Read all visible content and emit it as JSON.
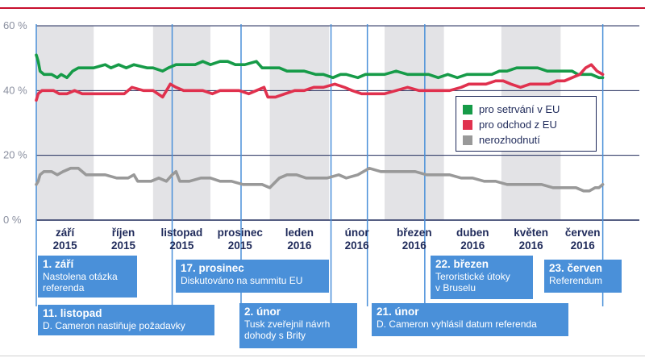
{
  "colors": {
    "leave": "#e0314e",
    "remain": "#169b48",
    "undecided": "#999999",
    "axis": "#1f2a5a",
    "annotation": "#4a90d9",
    "band": "#e3e3e6"
  },
  "annotations": [
    {
      "title": "1. září",
      "text": "Nastolena otázka\nreferenda"
    },
    {
      "title": "11. listopad",
      "text": "D. Cameron nastiňuje požadavky"
    },
    {
      "title": "17. prosinec",
      "text": "Diskutováno na summitu EU"
    },
    {
      "title": "2. únor",
      "text": "Tusk zveřejnil návrh\ndohody s Brity"
    },
    {
      "title": "21. únor",
      "text": "D. Cameron vyhlásil datum referenda"
    },
    {
      "title": "22. březen",
      "text": "Teroristické útoky\nv Bruselu"
    },
    {
      "title": "23. červen",
      "text": "Referendum"
    }
  ],
  "chart_data": {
    "type": "line",
    "title": "",
    "xlabel": "",
    "ylabel": "",
    "ylim": [
      0,
      60
    ],
    "yticks": [
      "0 %",
      "20 %",
      "40 %",
      "60 %"
    ],
    "ytick_values": [
      0,
      20,
      40,
      60
    ],
    "x_range_days": [
      0,
      297
    ],
    "months": [
      {
        "label": "září",
        "year": "2015",
        "start_day": 0,
        "shaded": true
      },
      {
        "label": "říjen",
        "year": "2015",
        "start_day": 30,
        "shaded": false
      },
      {
        "label": "listopad",
        "year": "2015",
        "start_day": 61,
        "shaded": true
      },
      {
        "label": "prosinec",
        "year": "2015",
        "start_day": 91,
        "shaded": false
      },
      {
        "label": "leden",
        "year": "2016",
        "start_day": 122,
        "shaded": true
      },
      {
        "label": "únor",
        "year": "2016",
        "start_day": 153,
        "shaded": false
      },
      {
        "label": "březen",
        "year": "2016",
        "start_day": 182,
        "shaded": true
      },
      {
        "label": "duben",
        "year": "2016",
        "start_day": 213,
        "shaded": false
      },
      {
        "label": "květen",
        "year": "2016",
        "start_day": 243,
        "shaded": true
      },
      {
        "label": "červen",
        "year": "2016",
        "start_day": 274,
        "shaded": false
      }
    ],
    "event_days": [
      0,
      71,
      107,
      154,
      173,
      203,
      296
    ],
    "legend": [
      "pro setrvání v EU",
      "pro odchod z EU",
      "nerozhodnutí"
    ],
    "series": [
      {
        "name": "pro setrvání v EU",
        "color": "#169b48",
        "x": [
          0,
          1,
          2,
          4,
          8,
          11,
          13,
          16,
          19,
          22,
          26,
          30,
          36,
          39,
          43,
          47,
          51,
          58,
          61,
          66,
          69,
          73,
          78,
          83,
          87,
          91,
          96,
          100,
          104,
          109,
          115,
          118,
          122,
          127,
          131,
          135,
          140,
          146,
          150,
          155,
          159,
          162,
          168,
          172,
          177,
          182,
          188,
          194,
          200,
          205,
          210,
          215,
          220,
          225,
          232,
          238,
          242,
          246,
          251,
          257,
          262,
          267,
          271,
          275,
          280,
          283,
          286,
          290,
          294,
          296
        ],
        "values": [
          51,
          49,
          46,
          45,
          45,
          44,
          45,
          44,
          46,
          47,
          47,
          47,
          48,
          47,
          48,
          47,
          48,
          47,
          47,
          46,
          47,
          48,
          48,
          48,
          49,
          48,
          49,
          49,
          48,
          48,
          49,
          47,
          47,
          47,
          46,
          46,
          46,
          45,
          45,
          44,
          45,
          45,
          44,
          45,
          45,
          45,
          46,
          45,
          45,
          45,
          44,
          45,
          44,
          45,
          45,
          45,
          46,
          46,
          47,
          47,
          47,
          46,
          46,
          46,
          46,
          45,
          45,
          45,
          44,
          44
        ]
      },
      {
        "name": "pro odchod z EU",
        "color": "#e0314e",
        "x": [
          0,
          1,
          3,
          6,
          9,
          12,
          16,
          20,
          24,
          30,
          36,
          42,
          46,
          50,
          56,
          61,
          66,
          70,
          73,
          77,
          82,
          87,
          92,
          96,
          100,
          106,
          111,
          115,
          119,
          121,
          125,
          130,
          135,
          140,
          145,
          150,
          156,
          161,
          165,
          170,
          176,
          182,
          188,
          194,
          200,
          205,
          210,
          216,
          222,
          226,
          230,
          235,
          240,
          244,
          248,
          253,
          258,
          263,
          268,
          272,
          276,
          280,
          284,
          287,
          290,
          293,
          296
        ],
        "values": [
          37,
          39,
          40,
          40,
          40,
          39,
          39,
          40,
          39,
          39,
          39,
          39,
          39,
          41,
          40,
          40,
          38,
          42,
          41,
          40,
          40,
          40,
          39,
          40,
          40,
          40,
          39,
          40,
          41,
          38,
          38,
          39,
          40,
          40,
          41,
          41,
          42,
          41,
          40,
          39,
          39,
          39,
          40,
          41,
          40,
          40,
          40,
          40,
          41,
          42,
          42,
          42,
          43,
          43,
          42,
          41,
          42,
          42,
          42,
          43,
          43,
          44,
          45,
          47,
          48,
          46,
          45
        ]
      },
      {
        "name": "nerozhodnutí",
        "color": "#999999",
        "x": [
          0,
          1,
          2,
          4,
          8,
          11,
          14,
          18,
          22,
          26,
          30,
          36,
          42,
          48,
          51,
          53,
          56,
          60,
          64,
          68,
          71,
          73,
          75,
          80,
          86,
          91,
          96,
          102,
          108,
          114,
          118,
          122,
          127,
          131,
          136,
          141,
          147,
          152,
          158,
          162,
          168,
          174,
          180,
          186,
          192,
          198,
          204,
          210,
          216,
          222,
          228,
          234,
          240,
          246,
          252,
          258,
          264,
          270,
          276,
          282,
          286,
          289,
          292,
          294,
          296
        ],
        "values": [
          11,
          12,
          14,
          15,
          15,
          14,
          15,
          16,
          16,
          14,
          14,
          14,
          13,
          13,
          14,
          12,
          12,
          12,
          13,
          12,
          14,
          15,
          12,
          12,
          13,
          13,
          12,
          12,
          11,
          11,
          11,
          10,
          13,
          14,
          14,
          13,
          13,
          13,
          14,
          13,
          14,
          16,
          15,
          15,
          15,
          15,
          14,
          14,
          14,
          13,
          13,
          12,
          12,
          11,
          11,
          11,
          11,
          10,
          10,
          10,
          9,
          9,
          10,
          10,
          11
        ]
      }
    ]
  }
}
